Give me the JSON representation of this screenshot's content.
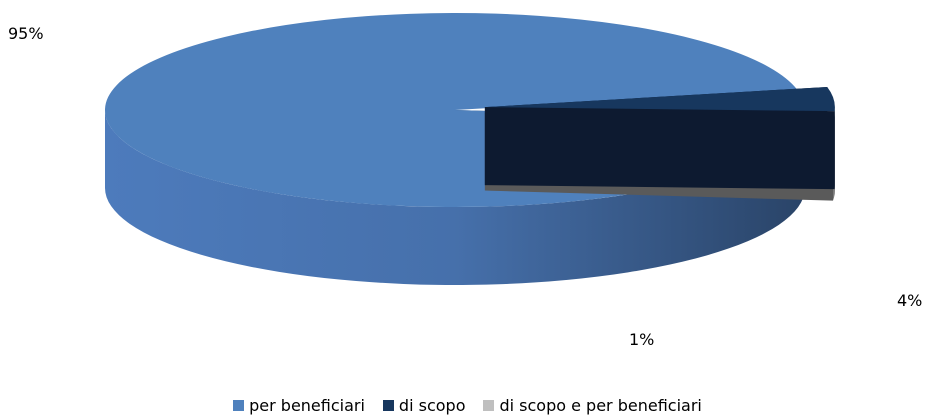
{
  "chart_data": {
    "type": "pie",
    "title": "",
    "three_d": true,
    "exploded": [
      "di scopo",
      "di scopo e per beneficiari"
    ],
    "legend_position": "bottom",
    "categories": [
      "per beneficiari",
      "di scopo",
      "di scopo e per beneficiari"
    ],
    "values": [
      95,
      4,
      1
    ],
    "data_labels": [
      "95%",
      "4%",
      "1%"
    ],
    "colors": {
      "per beneficiari": "#4f81bd",
      "di scopo": "#17375e",
      "di scopo e per beneficiari": "#bfbfbf"
    }
  }
}
